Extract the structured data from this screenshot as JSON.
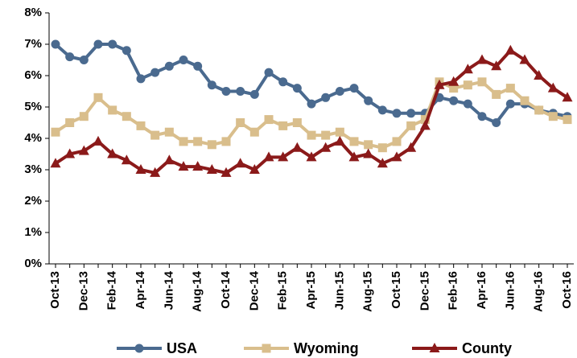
{
  "chart_data": {
    "type": "line",
    "categories": [
      "Oct-13",
      null,
      "Dec-13",
      null,
      "Feb-14",
      null,
      "Apr-14",
      null,
      "Jun-14",
      null,
      "Aug-14",
      null,
      "Oct-14",
      null,
      "Dec-14",
      null,
      "Feb-15",
      null,
      "Apr-15",
      null,
      "Jun-15",
      null,
      "Aug-15",
      null,
      "Oct-15",
      null,
      "Dec-15",
      null,
      "Feb-16",
      null,
      "Apr-16",
      null,
      "Jun-16",
      null,
      "Aug-16",
      null,
      "Oct-16"
    ],
    "series": [
      {
        "name": "USA",
        "color": "#4a6a8f",
        "marker": "circle",
        "values": [
          7.0,
          6.6,
          6.5,
          7.0,
          7.0,
          6.8,
          5.9,
          6.1,
          6.3,
          6.5,
          6.3,
          5.7,
          5.5,
          5.5,
          5.4,
          6.1,
          5.8,
          5.6,
          5.1,
          5.3,
          5.5,
          5.6,
          5.2,
          4.9,
          4.8,
          4.8,
          4.8,
          5.3,
          5.2,
          5.1,
          4.7,
          4.5,
          5.1,
          5.1,
          4.9,
          4.8,
          4.7
        ]
      },
      {
        "name": "Wyoming",
        "color": "#d9be8c",
        "marker": "square",
        "values": [
          4.2,
          4.5,
          4.7,
          5.3,
          4.9,
          4.7,
          4.4,
          4.1,
          4.2,
          3.9,
          3.9,
          3.8,
          3.9,
          4.5,
          4.2,
          4.6,
          4.4,
          4.5,
          4.1,
          4.1,
          4.2,
          3.9,
          3.8,
          3.7,
          3.9,
          4.4,
          4.6,
          5.8,
          5.6,
          5.7,
          5.8,
          5.4,
          5.6,
          5.2,
          4.9,
          4.7,
          4.6
        ]
      },
      {
        "name": "County",
        "color": "#8b1a1a",
        "marker": "triangle",
        "values": [
          3.2,
          3.5,
          3.6,
          3.9,
          3.5,
          3.3,
          3.0,
          2.9,
          3.3,
          3.1,
          3.1,
          3.0,
          2.9,
          3.2,
          3.0,
          3.4,
          3.4,
          3.7,
          3.4,
          3.7,
          3.9,
          3.4,
          3.5,
          3.2,
          3.4,
          3.7,
          4.4,
          5.7,
          5.8,
          6.2,
          6.5,
          6.3,
          6.8,
          6.5,
          6.0,
          5.6,
          5.3
        ]
      }
    ],
    "ylim": [
      0,
      8
    ],
    "yticks": [
      {
        "value": 0,
        "label": "0%"
      },
      {
        "value": 1,
        "label": "1%"
      },
      {
        "value": 2,
        "label": "2%"
      },
      {
        "value": 3,
        "label": "3%"
      },
      {
        "value": 4,
        "label": "4%"
      },
      {
        "value": 5,
        "label": "5%"
      },
      {
        "value": 6,
        "label": "6%"
      },
      {
        "value": 7,
        "label": "7%"
      },
      {
        "value": 8,
        "label": "8%"
      }
    ],
    "grid": false,
    "legend": "bottom"
  }
}
